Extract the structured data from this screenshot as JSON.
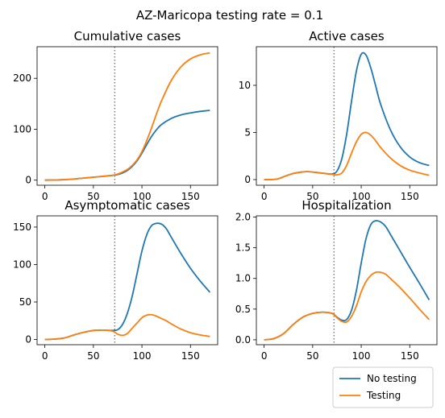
{
  "figure": {
    "suptitle": "AZ-Maricopa testing rate = 0.1"
  },
  "legend": {
    "placement": "bottom-right",
    "items": [
      {
        "label": "No testing",
        "color": "#1f77b4"
      },
      {
        "label": "Testing",
        "color": "#ff7f0e"
      }
    ]
  },
  "chart_data": [
    {
      "type": "line",
      "title": "Cumulative cases",
      "xlim": [
        -8,
        178
      ],
      "ylim": [
        -10,
        262
      ],
      "xticks": [
        0,
        50,
        100,
        150
      ],
      "yticks": [
        0,
        100,
        200
      ],
      "vline": {
        "x": 72,
        "style": "dotted",
        "color": "#808080"
      },
      "series": [
        {
          "name": "No testing",
          "color": "#1f77b4",
          "x": [
            0,
            10,
            20,
            30,
            40,
            50,
            60,
            70,
            75,
            80,
            85,
            90,
            95,
            100,
            105,
            110,
            115,
            120,
            130,
            140,
            150,
            160,
            170
          ],
          "y": [
            0,
            0.3,
            1,
            2.3,
            4,
            5.8,
            7.5,
            9.5,
            11,
            14,
            19,
            27,
            38,
            53,
            70,
            86,
            99,
            109,
            121,
            128,
            132,
            135,
            137
          ]
        },
        {
          "name": "Testing",
          "color": "#ff7f0e",
          "x": [
            0,
            10,
            20,
            30,
            40,
            50,
            60,
            70,
            75,
            80,
            85,
            90,
            95,
            100,
            105,
            110,
            115,
            120,
            130,
            140,
            150,
            160,
            170
          ],
          "y": [
            0,
            0.3,
            1,
            2.3,
            4,
            5.8,
            7.5,
            9.5,
            12,
            16,
            21,
            29,
            40,
            56,
            78,
            103,
            130,
            155,
            195,
            222,
            238,
            246,
            250
          ]
        }
      ]
    },
    {
      "type": "line",
      "title": "Active cases",
      "xlim": [
        -8,
        178
      ],
      "ylim": [
        -0.6,
        14.1
      ],
      "xticks": [
        0,
        50,
        100,
        150
      ],
      "yticks": [
        0,
        5,
        10
      ],
      "vline": {
        "x": 72,
        "style": "dotted",
        "color": "#808080"
      },
      "series": [
        {
          "name": "No testing",
          "color": "#1f77b4",
          "x": [
            0,
            10,
            15,
            20,
            30,
            40,
            45,
            50,
            60,
            70,
            75,
            80,
            85,
            90,
            95,
            100,
            105,
            110,
            115,
            120,
            130,
            140,
            150,
            160,
            170
          ],
          "y": [
            0,
            0.02,
            0.1,
            0.3,
            0.65,
            0.82,
            0.84,
            0.8,
            0.68,
            0.6,
            0.9,
            2.2,
            4.8,
            8.3,
            11.5,
            13.3,
            13.2,
            11.8,
            9.9,
            8.0,
            5.3,
            3.5,
            2.4,
            1.8,
            1.5
          ]
        },
        {
          "name": "Testing",
          "color": "#ff7f0e",
          "x": [
            0,
            10,
            15,
            20,
            30,
            40,
            45,
            50,
            60,
            70,
            75,
            80,
            85,
            90,
            95,
            100,
            105,
            110,
            115,
            120,
            130,
            140,
            150,
            160,
            170
          ],
          "y": [
            0,
            0.02,
            0.1,
            0.3,
            0.65,
            0.82,
            0.84,
            0.8,
            0.68,
            0.55,
            0.5,
            0.7,
            1.5,
            2.8,
            4.0,
            4.8,
            5.0,
            4.7,
            4.1,
            3.4,
            2.3,
            1.5,
            1.0,
            0.7,
            0.45
          ]
        }
      ]
    },
    {
      "type": "line",
      "title": "Asymptomatic cases",
      "xlim": [
        -8,
        178
      ],
      "ylim": [
        -7,
        165
      ],
      "xticks": [
        0,
        50,
        100,
        150
      ],
      "yticks": [
        0,
        50,
        100,
        150
      ],
      "vline": {
        "x": 72,
        "style": "dotted",
        "color": "#808080"
      },
      "series": [
        {
          "name": "No testing",
          "color": "#1f77b4",
          "x": [
            0,
            10,
            20,
            30,
            40,
            50,
            60,
            70,
            75,
            80,
            85,
            90,
            95,
            100,
            105,
            110,
            115,
            120,
            125,
            130,
            140,
            150,
            160,
            170
          ],
          "y": [
            0,
            0.5,
            2,
            6,
            9.5,
            12,
            12.5,
            12,
            13,
            20,
            35,
            58,
            88,
            118,
            140,
            152,
            155,
            154,
            148,
            137,
            115,
            95,
            78,
            63
          ]
        },
        {
          "name": "Testing",
          "color": "#ff7f0e",
          "x": [
            0,
            10,
            20,
            30,
            40,
            50,
            60,
            70,
            75,
            80,
            85,
            90,
            95,
            100,
            105,
            110,
            115,
            120,
            125,
            130,
            140,
            150,
            160,
            170
          ],
          "y": [
            0,
            0.5,
            2,
            6,
            9.5,
            12,
            12.5,
            11,
            7,
            5.5,
            8,
            15,
            22,
            29,
            32.5,
            33,
            31,
            28,
            25,
            21,
            14,
            9,
            6,
            4
          ]
        }
      ]
    },
    {
      "type": "line",
      "title": "Hospitalization",
      "xlim": [
        -8,
        178
      ],
      "ylim": [
        -0.08,
        2.02
      ],
      "xticks": [
        0,
        50,
        100,
        150
      ],
      "yticks": [
        0,
        0.5,
        1.0,
        1.5,
        2.0
      ],
      "ytick_labels": [
        "0.0",
        "0.5",
        "1.0",
        "1.5",
        "2.0"
      ],
      "vline": {
        "x": 72,
        "style": "dotted",
        "color": "#808080"
      },
      "series": [
        {
          "name": "No testing",
          "color": "#1f77b4",
          "x": [
            0,
            10,
            20,
            30,
            40,
            50,
            60,
            70,
            75,
            80,
            85,
            90,
            95,
            100,
            105,
            110,
            115,
            120,
            125,
            130,
            140,
            150,
            160,
            170
          ],
          "y": [
            0,
            0.02,
            0.1,
            0.25,
            0.37,
            0.43,
            0.45,
            0.43,
            0.37,
            0.32,
            0.33,
            0.48,
            0.8,
            1.25,
            1.65,
            1.88,
            1.94,
            1.92,
            1.85,
            1.72,
            1.45,
            1.18,
            0.92,
            0.65
          ]
        },
        {
          "name": "Testing",
          "color": "#ff7f0e",
          "x": [
            0,
            10,
            20,
            30,
            40,
            50,
            60,
            70,
            75,
            80,
            85,
            90,
            95,
            100,
            105,
            110,
            115,
            120,
            125,
            130,
            140,
            150,
            160,
            170
          ],
          "y": [
            0,
            0.02,
            0.1,
            0.25,
            0.37,
            0.43,
            0.45,
            0.43,
            0.36,
            0.3,
            0.29,
            0.38,
            0.55,
            0.78,
            0.95,
            1.05,
            1.1,
            1.1,
            1.07,
            1.0,
            0.85,
            0.68,
            0.5,
            0.33
          ]
        }
      ]
    }
  ]
}
